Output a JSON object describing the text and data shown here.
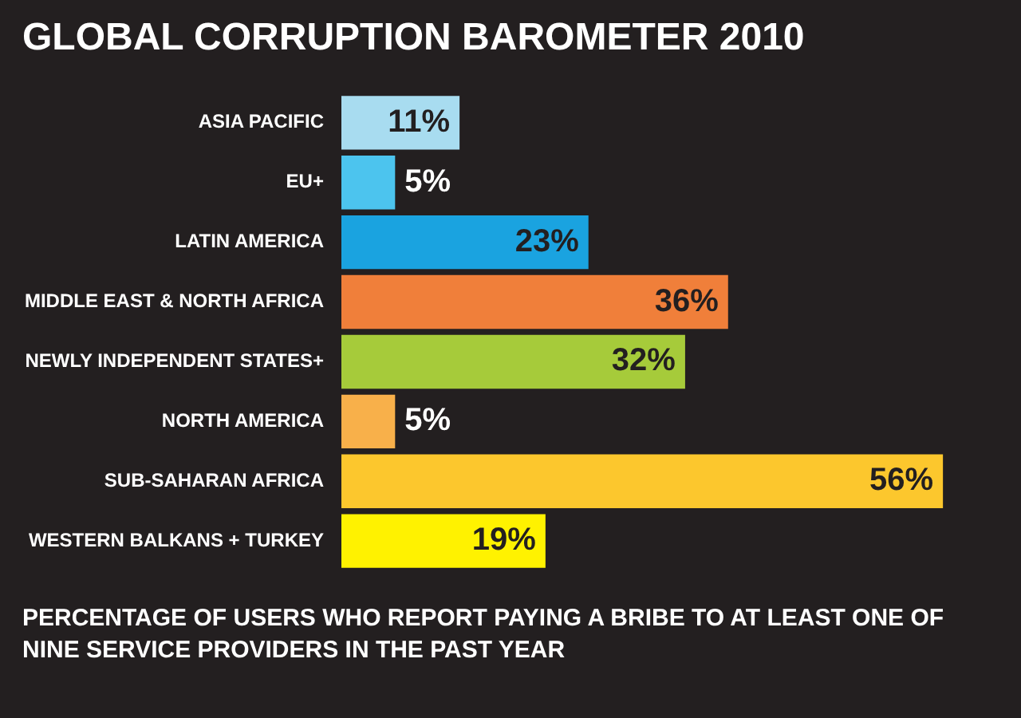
{
  "chart_data": {
    "type": "bar",
    "orientation": "horizontal",
    "title": "GLOBAL CORRUPTION BAROMETER 2010",
    "categories": [
      "ASIA PACIFIC",
      "EU+",
      "LATIN AMERICA",
      "MIDDLE EAST & NORTH AFRICA",
      "NEWLY INDEPENDENT STATES+",
      "NORTH AMERICA",
      "SUB-SAHARAN AFRICA",
      "WESTERN BALKANS + TURKEY"
    ],
    "values": [
      11,
      5,
      23,
      36,
      32,
      5,
      56,
      19
    ],
    "value_labels": [
      "11%",
      "5%",
      "23%",
      "36%",
      "32%",
      "5%",
      "56%",
      "19%"
    ],
    "colors": [
      "#a8dcf0",
      "#4cc4ee",
      "#1aa3e0",
      "#f07f3a",
      "#a6cb3a",
      "#f8b04a",
      "#fcc72d",
      "#fff200"
    ],
    "tick_labels": "y",
    "grid": false,
    "legend": false,
    "annotations": [
      "PERCENTAGE OF USERS WHO REPORT PAYING A BRIBE TO AT LEAST ONE OF NINE SERVICE PROVIDERS IN THE PAST YEAR"
    ]
  }
}
